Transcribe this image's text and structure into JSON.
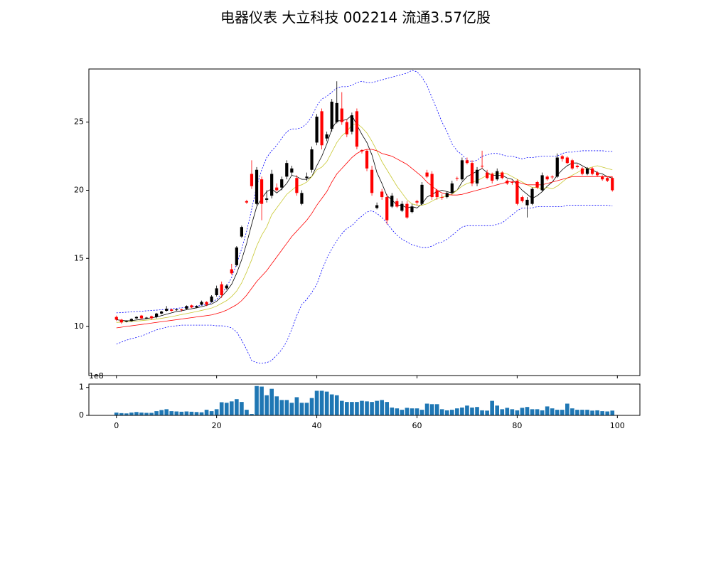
{
  "title": "电器仪表 大立科技 002214 流通3.57亿股",
  "chart_data": [
    {
      "type": "candlestick",
      "x": [
        0,
        1,
        2,
        3,
        4,
        5,
        6,
        7,
        8,
        9,
        10,
        11,
        12,
        13,
        14,
        15,
        16,
        17,
        18,
        19,
        20,
        21,
        22,
        23,
        24,
        25,
        26,
        27,
        28,
        29,
        30,
        31,
        32,
        33,
        34,
        35,
        36,
        37,
        38,
        39,
        40,
        41,
        42,
        43,
        44,
        45,
        46,
        47,
        48,
        49,
        50,
        51,
        52,
        53,
        54,
        55,
        56,
        57,
        58,
        59,
        60,
        61,
        62,
        63,
        64,
        65,
        66,
        67,
        68,
        69,
        70,
        71,
        72,
        73,
        74,
        75,
        76,
        77,
        78,
        79,
        80,
        81,
        82,
        83,
        84,
        85,
        86,
        87,
        88,
        89,
        90,
        91,
        92,
        93,
        94,
        95,
        96,
        97,
        98,
        99
      ],
      "open": [
        10.7,
        10.5,
        10.35,
        10.4,
        10.6,
        10.8,
        10.6,
        10.75,
        10.7,
        10.95,
        11.15,
        11.25,
        11.2,
        11.25,
        11.3,
        11.55,
        11.4,
        11.6,
        11.8,
        11.8,
        12.3,
        13.1,
        12.8,
        14.2,
        14.5,
        16.6,
        19.2,
        21.2,
        19.0,
        20.8,
        19.3,
        19.6,
        20.2,
        20.2,
        21.0,
        21.3,
        20.9,
        19.0,
        20.9,
        21.5,
        23.5,
        25.8,
        23.8,
        24.5,
        25.0,
        26.0,
        25.0,
        24.3,
        25.8,
        22.95,
        22.9,
        21.5,
        18.7,
        19.9,
        19.5,
        18.8,
        19.2,
        18.5,
        19.0,
        18.4,
        19.2,
        19.0,
        21.3,
        21.2,
        20.0,
        19.5,
        19.5,
        19.8,
        20.9,
        20.8,
        22.2,
        22.0,
        20.5,
        21.8,
        21.3,
        21.2,
        20.8,
        21.3,
        20.7,
        20.6,
        20.7,
        19.5,
        18.9,
        19.0,
        20.6,
        20.0,
        21.0,
        21.0,
        21.0,
        22.5,
        22.4,
        22.2,
        21.8,
        21.6,
        21.2,
        21.6,
        21.3,
        21.0,
        20.9,
        20.9
      ],
      "high": [
        10.8,
        10.55,
        10.45,
        10.6,
        10.75,
        10.85,
        10.7,
        10.8,
        11.0,
        11.15,
        11.5,
        11.3,
        11.3,
        11.3,
        11.55,
        11.6,
        11.55,
        11.9,
        11.85,
        12.3,
        13.0,
        13.3,
        13.1,
        14.6,
        15.9,
        17.4,
        19.3,
        22.2,
        21.7,
        21.0,
        20.0,
        21.5,
        20.5,
        21.0,
        22.2,
        21.8,
        21.1,
        20.0,
        21.3,
        23.2,
        25.6,
        26.0,
        24.3,
        26.7,
        28.0,
        27.2,
        25.2,
        25.7,
        26.0,
        23.0,
        23.0,
        21.8,
        19.1,
        20.1,
        19.7,
        19.8,
        19.4,
        19.2,
        19.2,
        19.0,
        19.3,
        20.6,
        21.5,
        21.4,
        20.1,
        19.7,
        19.9,
        20.7,
        21.0,
        22.4,
        22.4,
        22.2,
        21.7,
        22.9,
        21.5,
        21.3,
        21.6,
        21.4,
        20.8,
        20.7,
        20.8,
        19.6,
        19.5,
        20.2,
        20.7,
        21.3,
        21.1,
        21.1,
        22.7,
        22.6,
        22.5,
        22.3,
        21.9,
        21.7,
        21.7,
        21.7,
        21.4,
        21.1,
        21.0,
        21.0
      ],
      "low": [
        10.4,
        10.2,
        10.3,
        10.35,
        10.55,
        10.5,
        10.55,
        10.5,
        10.6,
        10.9,
        11.1,
        11.1,
        11.15,
        11.1,
        11.25,
        11.35,
        11.35,
        11.55,
        11.5,
        11.75,
        12.2,
        12.1,
        12.7,
        13.8,
        14.4,
        16.5,
        19.0,
        20.1,
        18.9,
        17.8,
        19.1,
        19.4,
        19.9,
        20.0,
        20.8,
        21.1,
        19.6,
        18.9,
        20.7,
        21.3,
        23.3,
        23.0,
        23.6,
        24.3,
        24.9,
        24.8,
        23.9,
        24.1,
        23.0,
        22.7,
        21.4,
        19.6,
        18.6,
        19.3,
        17.5,
        18.7,
        18.7,
        18.4,
        17.9,
        18.3,
        18.9,
        18.9,
        20.9,
        19.3,
        19.3,
        19.3,
        19.4,
        19.7,
        20.7,
        20.7,
        21.9,
        20.3,
        20.3,
        21.6,
        20.8,
        20.5,
        20.7,
        20.8,
        20.4,
        20.4,
        18.9,
        19.1,
        18.0,
        18.9,
        20.1,
        19.9,
        20.7,
        20.8,
        20.9,
        22.1,
        21.9,
        21.5,
        21.6,
        21.1,
        21.1,
        21.1,
        21.0,
        20.7,
        20.6,
        19.9
      ],
      "close": [
        10.5,
        10.3,
        10.4,
        10.55,
        10.7,
        10.6,
        10.65,
        10.6,
        10.95,
        11.1,
        11.3,
        11.15,
        11.25,
        11.2,
        11.5,
        11.4,
        11.5,
        11.8,
        11.6,
        12.2,
        12.8,
        12.3,
        13.0,
        13.9,
        15.8,
        17.3,
        19.1,
        20.3,
        21.5,
        19.0,
        19.4,
        21.2,
        20.0,
        20.8,
        22.0,
        21.6,
        19.8,
        19.8,
        21.0,
        23.0,
        25.4,
        23.3,
        24.1,
        26.5,
        26.4,
        25.0,
        24.1,
        25.5,
        23.2,
        22.85,
        21.6,
        19.8,
        18.9,
        19.5,
        17.8,
        19.6,
        18.8,
        19.0,
        18.0,
        18.8,
        19.1,
        20.4,
        21.0,
        19.5,
        19.5,
        19.45,
        19.8,
        20.5,
        20.85,
        22.2,
        22.0,
        20.5,
        21.5,
        21.75,
        20.9,
        20.7,
        21.4,
        20.9,
        20.5,
        20.55,
        19.0,
        19.2,
        19.3,
        20.1,
        20.2,
        21.1,
        20.8,
        20.95,
        22.4,
        22.3,
        22.0,
        21.6,
        21.7,
        21.2,
        21.6,
        21.2,
        21.1,
        20.8,
        20.7,
        20.0
      ],
      "up_color": "#000000",
      "down_color": "#ff0000",
      "series": [
        {
          "color": "#000000",
          "values": [
            10.5,
            10.45,
            10.42,
            10.43,
            10.48,
            10.52,
            10.58,
            10.64,
            10.7,
            10.8,
            10.9,
            11.0,
            11.1,
            11.15,
            11.23,
            11.3,
            11.37,
            11.45,
            11.55,
            11.65,
            11.85,
            12.2,
            12.6,
            13.1,
            13.9,
            14.9,
            16.1,
            17.5,
            18.8,
            19.4,
            19.9,
            20.1,
            19.8,
            20.1,
            20.5,
            21.1,
            21.0,
            20.8,
            20.8,
            21.0,
            21.8,
            22.5,
            23.4,
            24.5,
            25.1,
            25.1,
            25.2,
            25.5,
            24.8,
            24.1,
            23.5,
            22.6,
            21.3,
            20.5,
            19.6,
            19.3,
            18.9,
            18.9,
            18.7,
            18.8,
            18.7,
            19.0,
            19.5,
            19.7,
            19.9,
            20.0,
            19.9,
            19.8,
            20.0,
            20.6,
            21.0,
            21.2,
            21.4,
            21.6,
            21.3,
            21.1,
            21.1,
            21.1,
            20.9,
            20.8,
            20.4,
            20.0,
            19.7,
            19.4,
            19.6,
            19.9,
            20.3,
            20.6,
            21.1,
            21.5,
            21.8,
            22.0,
            22.0,
            21.8,
            21.6,
            21.5,
            21.3,
            21.2,
            21.0,
            20.9
          ]
        },
        {
          "color": "#c8c832",
          "values": [
            10.3,
            10.32,
            10.34,
            10.37,
            10.4,
            10.43,
            10.47,
            10.5,
            10.54,
            10.6,
            10.66,
            10.72,
            10.8,
            10.88,
            10.95,
            11.02,
            11.1,
            11.18,
            11.26,
            11.35,
            11.5,
            11.7,
            11.9,
            12.2,
            12.6,
            13.2,
            14.0,
            14.9,
            15.9,
            16.7,
            17.3,
            18.2,
            18.7,
            19.2,
            19.7,
            20.0,
            20.3,
            20.4,
            20.6,
            21.0,
            21.5,
            21.7,
            22.1,
            22.8,
            23.5,
            24.0,
            24.3,
            24.8,
            24.9,
            24.6,
            24.2,
            23.6,
            22.9,
            22.1,
            21.5,
            20.9,
            20.3,
            19.8,
            19.3,
            19.0,
            18.9,
            18.9,
            19.0,
            19.2,
            19.4,
            19.5,
            19.6,
            19.7,
            20.0,
            20.3,
            20.5,
            20.6,
            20.7,
            20.9,
            21.1,
            21.2,
            21.2,
            21.3,
            21.2,
            21.0,
            20.8,
            20.6,
            20.4,
            20.2,
            20.2,
            20.1,
            20.2,
            20.1,
            20.3,
            20.6,
            20.9,
            21.1,
            21.3,
            21.5,
            21.6,
            21.7,
            21.8,
            21.7,
            21.6,
            21.5
          ]
        },
        {
          "color": "#ff0000",
          "values": [
            9.9,
            9.95,
            10.0,
            10.05,
            10.1,
            10.15,
            10.2,
            10.25,
            10.3,
            10.35,
            10.4,
            10.45,
            10.5,
            10.55,
            10.6,
            10.65,
            10.7,
            10.75,
            10.8,
            10.85,
            10.95,
            11.05,
            11.2,
            11.4,
            11.6,
            11.9,
            12.3,
            12.8,
            13.3,
            13.7,
            14.1,
            14.6,
            15.1,
            15.6,
            16.1,
            16.6,
            17.0,
            17.4,
            17.8,
            18.3,
            18.9,
            19.4,
            19.9,
            20.6,
            21.2,
            21.6,
            22.0,
            22.4,
            22.7,
            22.9,
            23.0,
            23.0,
            22.9,
            22.7,
            22.6,
            22.5,
            22.3,
            22.1,
            21.9,
            21.6,
            21.3,
            21.0,
            20.6,
            20.3,
            20.0,
            19.8,
            19.7,
            19.65,
            19.65,
            19.7,
            19.8,
            19.9,
            20.0,
            20.1,
            20.2,
            20.3,
            20.4,
            20.5,
            20.6,
            20.65,
            20.6,
            20.5,
            20.4,
            20.4,
            20.4,
            20.4,
            20.5,
            20.6,
            20.7,
            20.8,
            20.9,
            21.0,
            21.0,
            21.0,
            21.0,
            21.0,
            21.0,
            21.0,
            21.0,
            21.0
          ]
        },
        {
          "color": "#0000ff",
          "dashed": true,
          "values": [
            11.0,
            11.02,
            11.05,
            11.07,
            11.1,
            11.12,
            11.15,
            11.18,
            11.2,
            11.23,
            11.26,
            11.3,
            11.33,
            11.37,
            11.4,
            11.45,
            11.5,
            11.55,
            11.62,
            11.75,
            12.0,
            12.4,
            12.9,
            13.6,
            14.6,
            15.7,
            17.0,
            18.6,
            20.3,
            21.5,
            22.4,
            22.9,
            23.3,
            23.8,
            24.3,
            24.5,
            24.5,
            24.6,
            24.9,
            25.4,
            26.2,
            26.7,
            26.9,
            27.2,
            27.5,
            27.6,
            27.6,
            27.7,
            27.9,
            28.0,
            27.9,
            27.9,
            28.0,
            28.1,
            28.2,
            28.3,
            28.4,
            28.5,
            28.6,
            28.8,
            28.7,
            28.3,
            27.7,
            26.8,
            25.9,
            25.0,
            24.3,
            23.4,
            22.9,
            22.6,
            22.2,
            22.1,
            22.2,
            22.5,
            22.6,
            22.7,
            22.7,
            22.6,
            22.5,
            22.5,
            22.4,
            22.3,
            22.4,
            22.4,
            22.45,
            22.5,
            22.5,
            22.5,
            22.5,
            22.7,
            22.8,
            22.8,
            22.85,
            22.9,
            22.9,
            22.9,
            22.9,
            22.9,
            22.85,
            22.85
          ]
        },
        {
          "color": "#0000ff",
          "dashed": true,
          "values": [
            8.7,
            8.85,
            9.0,
            9.1,
            9.2,
            9.3,
            9.45,
            9.6,
            9.75,
            9.85,
            9.95,
            10.0,
            10.05,
            10.1,
            10.1,
            10.1,
            10.1,
            10.1,
            10.1,
            10.1,
            10.05,
            10.05,
            10.0,
            9.9,
            9.6,
            9.0,
            8.3,
            7.5,
            7.35,
            7.3,
            7.35,
            7.5,
            7.9,
            8.3,
            8.9,
            9.8,
            10.8,
            11.6,
            12.0,
            12.5,
            13.1,
            14.1,
            15.0,
            15.7,
            16.3,
            16.8,
            17.2,
            17.4,
            17.8,
            18.1,
            18.4,
            18.5,
            18.3,
            18.0,
            17.6,
            17.1,
            16.7,
            16.4,
            16.2,
            16.0,
            15.9,
            15.8,
            15.8,
            15.9,
            16.1,
            16.2,
            16.4,
            16.7,
            17.0,
            17.3,
            17.4,
            17.4,
            17.4,
            17.4,
            17.4,
            17.4,
            17.5,
            17.6,
            17.9,
            18.2,
            18.5,
            18.7,
            18.7,
            18.7,
            18.8,
            18.8,
            18.8,
            18.8,
            18.8,
            18.8,
            18.9,
            18.9,
            18.9,
            18.9,
            18.9,
            18.9,
            18.9,
            18.9,
            18.9,
            18.85
          ]
        }
      ],
      "xlim": [
        -5.5,
        104.5
      ],
      "xticks": [
        0,
        20,
        40,
        60,
        80,
        100
      ],
      "ylim": [
        6.4,
        28.9
      ],
      "yticks": [
        10,
        15,
        20,
        25
      ]
    },
    {
      "type": "bar",
      "x": [
        0,
        1,
        2,
        3,
        4,
        5,
        6,
        7,
        8,
        9,
        10,
        11,
        12,
        13,
        14,
        15,
        16,
        17,
        18,
        19,
        20,
        21,
        22,
        23,
        24,
        25,
        26,
        27,
        28,
        29,
        30,
        31,
        32,
        33,
        34,
        35,
        36,
        37,
        38,
        39,
        40,
        41,
        42,
        43,
        44,
        45,
        46,
        47,
        48,
        49,
        50,
        51,
        52,
        53,
        54,
        55,
        56,
        57,
        58,
        59,
        60,
        61,
        62,
        63,
        64,
        65,
        66,
        67,
        68,
        69,
        70,
        71,
        72,
        73,
        74,
        75,
        76,
        77,
        78,
        79,
        80,
        81,
        82,
        83,
        84,
        85,
        86,
        87,
        88,
        89,
        90,
        91,
        92,
        93,
        94,
        95,
        96,
        97,
        98,
        99
      ],
      "values": [
        0.1,
        0.08,
        0.07,
        0.1,
        0.12,
        0.1,
        0.09,
        0.09,
        0.15,
        0.19,
        0.22,
        0.15,
        0.14,
        0.13,
        0.14,
        0.13,
        0.12,
        0.11,
        0.2,
        0.15,
        0.22,
        0.47,
        0.45,
        0.5,
        0.58,
        0.48,
        0.2,
        0.05,
        1.05,
        1.03,
        0.72,
        0.95,
        0.68,
        0.55,
        0.55,
        0.45,
        0.65,
        0.45,
        0.45,
        0.62,
        0.88,
        0.88,
        0.85,
        0.75,
        0.72,
        0.52,
        0.48,
        0.48,
        0.48,
        0.52,
        0.5,
        0.48,
        0.52,
        0.55,
        0.48,
        0.28,
        0.25,
        0.2,
        0.27,
        0.25,
        0.25,
        0.2,
        0.42,
        0.4,
        0.4,
        0.22,
        0.18,
        0.2,
        0.25,
        0.28,
        0.35,
        0.28,
        0.3,
        0.18,
        0.17,
        0.52,
        0.35,
        0.22,
        0.27,
        0.22,
        0.18,
        0.27,
        0.3,
        0.22,
        0.22,
        0.18,
        0.32,
        0.25,
        0.2,
        0.2,
        0.42,
        0.25,
        0.2,
        0.2,
        0.2,
        0.17,
        0.18,
        0.15,
        0.14,
        0.17
      ],
      "color": "#1f77b4",
      "offset_text": "1e8",
      "xlim": [
        -5.5,
        104.5
      ],
      "xticks": [
        0,
        20,
        40,
        60,
        80,
        100
      ],
      "ylim": [
        0,
        1.12
      ],
      "yticks": [
        0,
        1
      ]
    }
  ]
}
